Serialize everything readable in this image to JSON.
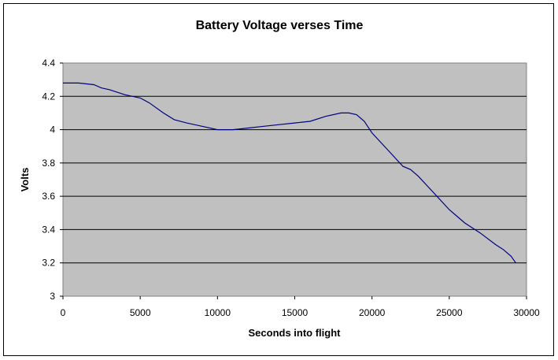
{
  "chart_data": {
    "type": "line",
    "title": "Battery Voltage verses Time",
    "xlabel": "Seconds into flight",
    "ylabel": "Volts",
    "xlim": [
      0,
      30000
    ],
    "ylim": [
      3,
      4.4
    ],
    "x_ticks": [
      "0",
      "5000",
      "10000",
      "15000",
      "20000",
      "25000",
      "30000"
    ],
    "y_ticks": [
      "4.4",
      "4.2",
      "4",
      "3.8",
      "3.6",
      "3.4",
      "3.2",
      "3"
    ],
    "grid": "horizontal",
    "plot_background": "#c0c0c0",
    "line_color": "#000080",
    "legend": "none",
    "series": [
      {
        "x": [
          0,
          1000,
          2000,
          2500,
          3000,
          4000,
          5000,
          5600,
          6500,
          7200,
          8000,
          9000,
          10000,
          11000,
          12000,
          13000,
          14000,
          15000,
          16000,
          17000,
          18000,
          18500,
          19000,
          19500,
          20000,
          21000,
          22000,
          22500,
          23000,
          24000,
          25000,
          25500,
          26000,
          27000,
          28000,
          28500,
          29000,
          29300
        ],
        "y": [
          4.28,
          4.28,
          4.27,
          4.25,
          4.24,
          4.21,
          4.19,
          4.16,
          4.1,
          4.06,
          4.04,
          4.02,
          4.0,
          4.0,
          4.01,
          4.02,
          4.03,
          4.04,
          4.05,
          4.08,
          4.1,
          4.1,
          4.09,
          4.05,
          3.98,
          3.88,
          3.78,
          3.76,
          3.72,
          3.62,
          3.52,
          3.48,
          3.44,
          3.38,
          3.31,
          3.28,
          3.24,
          3.2
        ]
      }
    ]
  }
}
